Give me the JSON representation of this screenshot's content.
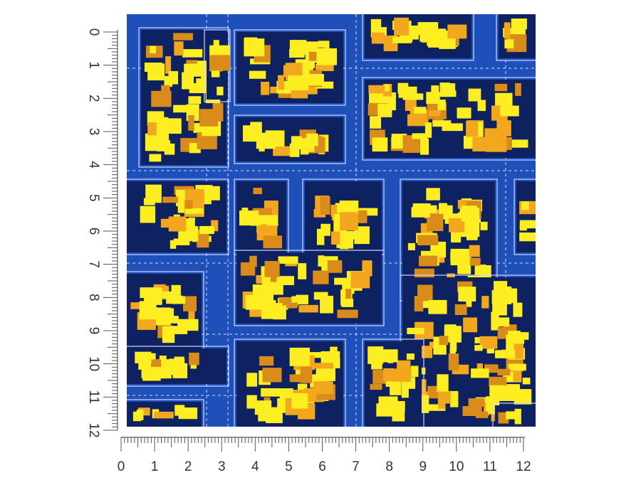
{
  "left_ruler": {
    "labels": [
      "0",
      "1",
      "2",
      "3",
      "4",
      "5",
      "6",
      "7",
      "8",
      "9",
      "10",
      "11",
      "12"
    ]
  },
  "bottom_ruler": {
    "labels": [
      "0",
      "1",
      "2",
      "3",
      "4",
      "5",
      "6",
      "7",
      "8",
      "9",
      "10",
      "11",
      "12"
    ]
  }
}
